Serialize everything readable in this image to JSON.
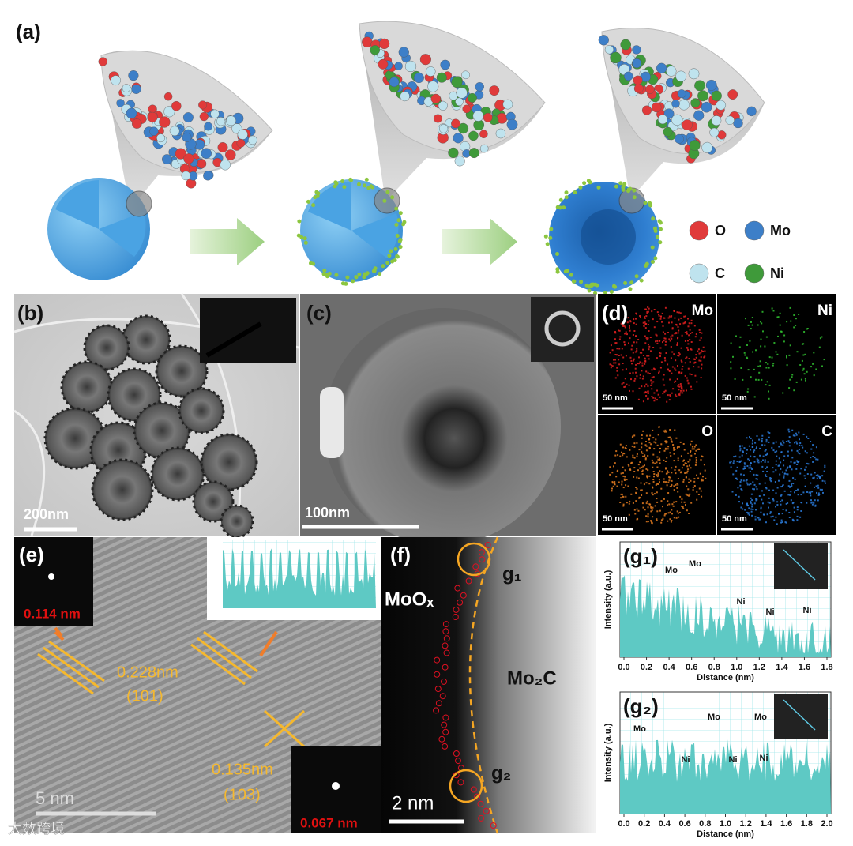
{
  "panel_a": {
    "label": "(a)",
    "legend": [
      {
        "element": "O",
        "color": "#e03a3a"
      },
      {
        "element": "Mo",
        "color": "#3d7fc8"
      },
      {
        "element": "C",
        "color": "#bfe3ee"
      },
      {
        "element": "Ni",
        "color": "#3f9a3a"
      }
    ]
  },
  "panel_b": {
    "label": "(b)",
    "scale_bar": "200nm"
  },
  "panel_c": {
    "label": "(c)",
    "scale_bar": "100nm"
  },
  "panel_d": {
    "label": "(d)",
    "maps": [
      {
        "element": "Mo",
        "color": "#e02020",
        "scale_bar": "50 nm"
      },
      {
        "element": "Ni",
        "color": "#30c030",
        "scale_bar": "50 nm"
      },
      {
        "element": "O",
        "color": "#e07a20",
        "scale_bar": "50 nm"
      },
      {
        "element": "C",
        "color": "#2a7ad8",
        "scale_bar": "50 nm"
      }
    ]
  },
  "panel_e": {
    "label": "(e)",
    "fft_top": "0.114 nm",
    "spacing_1": "0.228nm",
    "plane_1": "(101)",
    "spacing_2": "0.135nm",
    "plane_2": "(103)",
    "scale_bar": "5 nm",
    "fft_bottom": "0.067 nm"
  },
  "panel_f": {
    "label": "(f)",
    "phase_left": "MoOₓ",
    "phase_right": "Mo₂C",
    "marker_1": "g₁",
    "marker_2": "g₂",
    "scale_bar": "2 nm"
  },
  "panel_g1": {
    "label": "(g₁)",
    "y_label": "Intensity (a.u.)",
    "x_label": "Distance (nm)",
    "xlim": [
      0,
      1.8
    ],
    "xticks": [
      {
        "value": 0,
        "label": "0.0"
      },
      0.2,
      0.4,
      0.6,
      0.8,
      {
        "value": 1,
        "label": "1.0"
      },
      1.2,
      1.4,
      1.6,
      1.8
    ],
    "peaks": [
      "Mo",
      "Mo",
      "Ni",
      "Ni",
      "Ni"
    ]
  },
  "panel_g2": {
    "label": "(g₂)",
    "y_label": "Intensity (a.u.)",
    "x_label": "Distance (nm)",
    "xlim": [
      0,
      2
    ],
    "xticks": [
      {
        "value": 0,
        "label": "0.0"
      },
      0.2,
      0.4,
      0.6,
      0.8,
      {
        "value": 1,
        "label": "1.0"
      },
      1.2,
      1.4,
      1.6,
      1.8,
      {
        "value": 2,
        "label": "2.0"
      }
    ],
    "peaks": [
      "Mo",
      "Mo",
      "Mo",
      "Ni",
      "Ni",
      "Ni"
    ]
  },
  "watermark": "大数跨境"
}
